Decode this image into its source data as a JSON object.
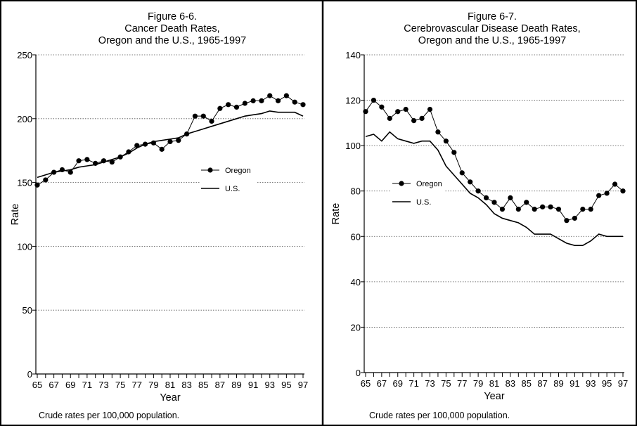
{
  "panels": [
    {
      "title_lines": [
        "Figure 6-6.",
        "Cancer Death Rates,",
        "Oregon and the U.S., 1965-1997"
      ],
      "note": "Crude rates per 100,000 population.",
      "chart_data": {
        "type": "line",
        "title": "Figure 6-6. Cancer Death Rates, Oregon and the U.S., 1965-1997",
        "xlabel": "Year",
        "ylabel": "Rate",
        "ylim": [
          0,
          250
        ],
        "y_ticks": [
          0,
          50,
          100,
          150,
          200,
          250
        ],
        "x_tick_labels": [
          "65",
          "67",
          "69",
          "71",
          "73",
          "75",
          "77",
          "79",
          "81",
          "83",
          "85",
          "87",
          "89",
          "91",
          "93",
          "95",
          "97"
        ],
        "x": [
          1965,
          1966,
          1967,
          1968,
          1969,
          1970,
          1971,
          1972,
          1973,
          1974,
          1975,
          1976,
          1977,
          1978,
          1979,
          1980,
          1981,
          1982,
          1983,
          1984,
          1985,
          1986,
          1987,
          1988,
          1989,
          1990,
          1991,
          1992,
          1993,
          1994,
          1995,
          1996,
          1997
        ],
        "grid": "horizontal-dotted",
        "legend_position": "center-right",
        "series": [
          {
            "name": "Oregon",
            "marker": "circle",
            "values": [
              148,
              152,
              158,
              160,
              158,
              167,
              168,
              165,
              167,
              166,
              170,
              174,
              179,
              180,
              181,
              176,
              182,
              183,
              188,
              202,
              202,
              198,
              208,
              211,
              209,
              212,
              214,
              214,
              218,
              214,
              218,
              213,
              211
            ]
          },
          {
            "name": "U.S.",
            "marker": "none",
            "values": [
              154,
              156,
              158,
              159,
              160,
              162,
              163,
              164,
              166,
              168,
              170,
              173,
              177,
              180,
              182,
              183,
              184,
              185,
              188,
              190,
              192,
              194,
              196,
              198,
              200,
              202,
              203,
              204,
              206,
              205,
              205,
              205,
              202
            ]
          }
        ]
      }
    },
    {
      "title_lines": [
        "Figure 6-7.",
        "Cerebrovascular Disease Death Rates,",
        "Oregon and the U.S., 1965-1997"
      ],
      "note": "Crude rates per 100,000 population.",
      "chart_data": {
        "type": "line",
        "title": "Figure 6-7. Cerebrovascular Disease Death Rates, Oregon and the U.S., 1965-1997",
        "xlabel": "Year",
        "ylabel": "Rate",
        "ylim": [
          0,
          140
        ],
        "y_ticks": [
          0,
          20,
          40,
          60,
          80,
          100,
          120,
          140
        ],
        "x_tick_labels": [
          "65",
          "67",
          "69",
          "71",
          "73",
          "75",
          "77",
          "79",
          "81",
          "83",
          "85",
          "87",
          "89",
          "91",
          "93",
          "95",
          "97"
        ],
        "x": [
          1965,
          1966,
          1967,
          1968,
          1969,
          1970,
          1971,
          1972,
          1973,
          1974,
          1975,
          1976,
          1977,
          1978,
          1979,
          1980,
          1981,
          1982,
          1983,
          1984,
          1985,
          1986,
          1987,
          1988,
          1989,
          1990,
          1991,
          1992,
          1993,
          1994,
          1995,
          1996,
          1997
        ],
        "grid": "horizontal-dotted",
        "legend_position": "center-left",
        "series": [
          {
            "name": "Oregon",
            "marker": "circle",
            "values": [
              115,
              120,
              117,
              112,
              115,
              116,
              111,
              112,
              116,
              106,
              102,
              97,
              88,
              84,
              80,
              77,
              75,
              72,
              77,
              72,
              75,
              72,
              73,
              73,
              72,
              67,
              68,
              72,
              72,
              78,
              79,
              83,
              80
            ]
          },
          {
            "name": "U.S.",
            "marker": "none",
            "values": [
              104,
              105,
              102,
              106,
              103,
              102,
              101,
              102,
              102,
              98,
              91,
              87,
              83,
              79,
              77,
              74,
              70,
              68,
              67,
              66,
              64,
              61,
              61,
              61,
              59,
              57,
              56,
              56,
              58,
              61,
              60,
              60,
              60
            ]
          }
        ]
      }
    }
  ]
}
